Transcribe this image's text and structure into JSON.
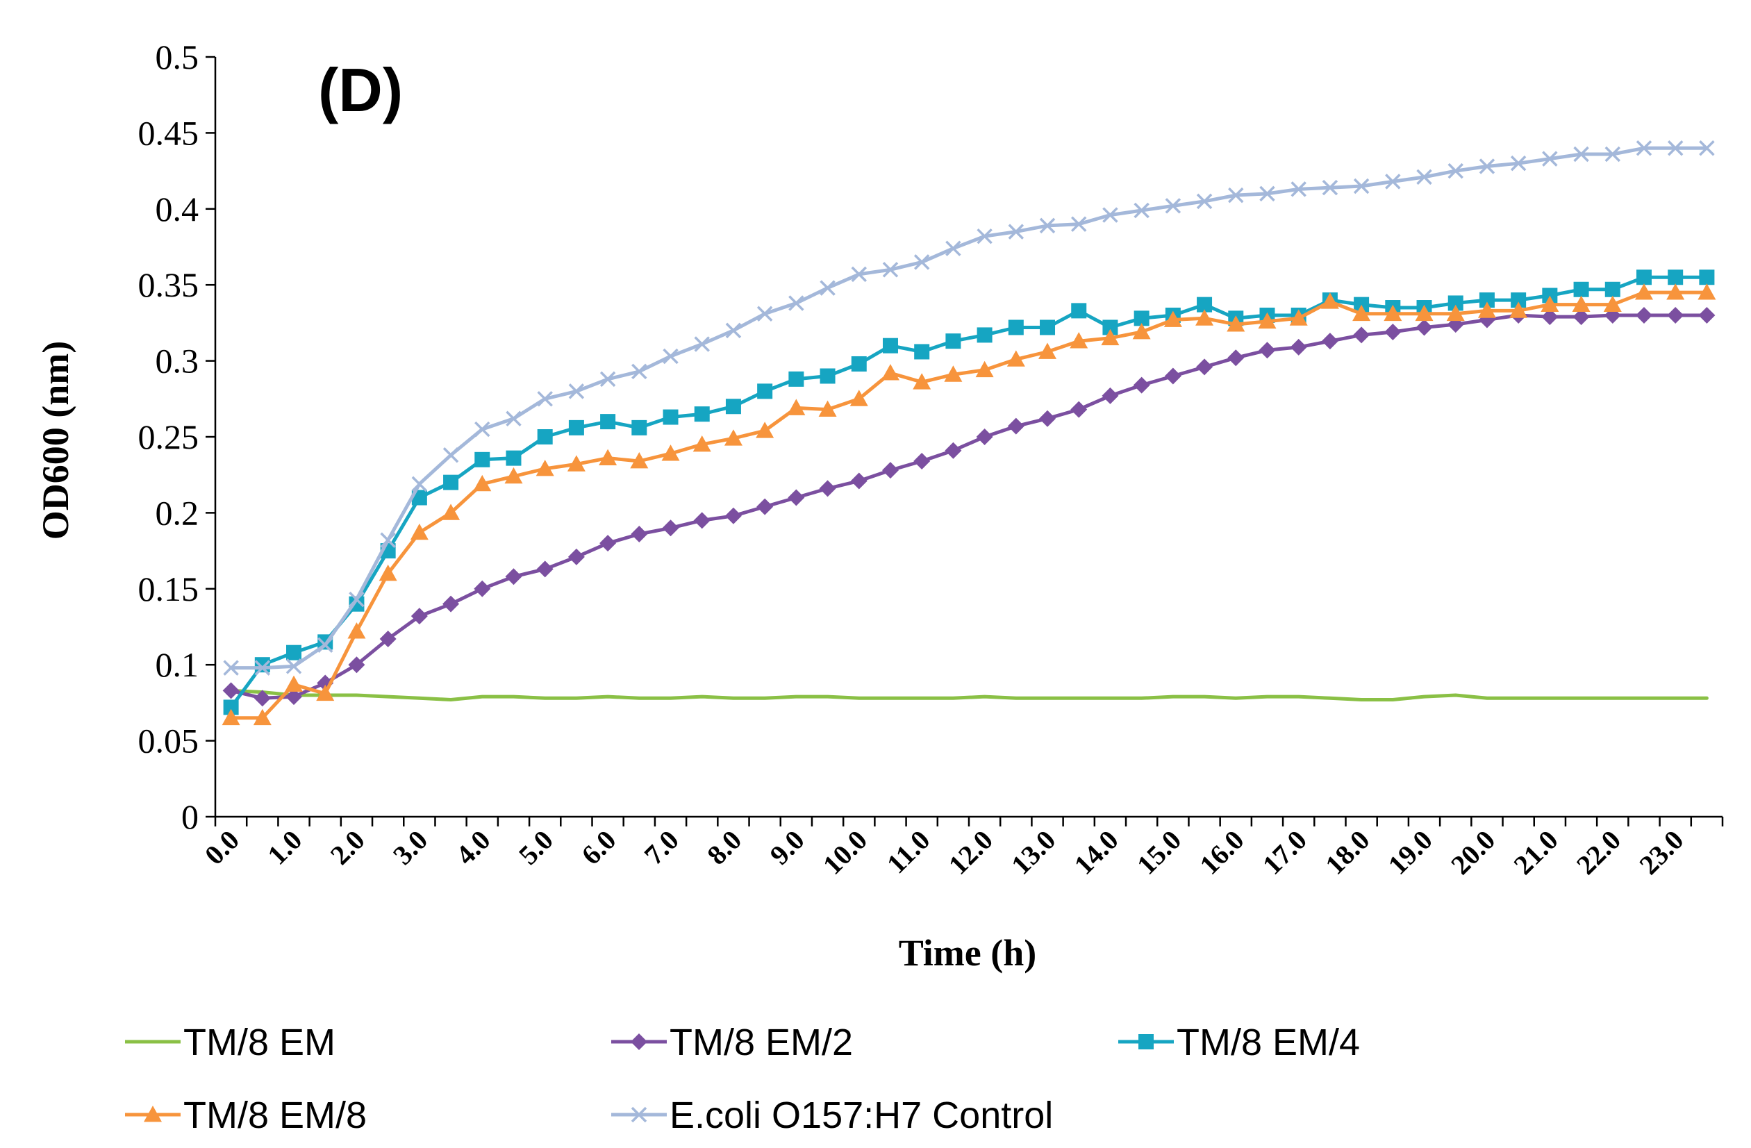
{
  "chart_data": {
    "type": "line",
    "panel_label": "(D)",
    "xlabel": "Time (h)",
    "ylabel": "OD600 (nm)",
    "ylim": [
      0,
      0.5
    ],
    "y_ticks": [
      "0",
      "0.05",
      "0.1",
      "0.15",
      "0.2",
      "0.25",
      "0.3",
      "0.35",
      "0.4",
      "0.45",
      "0.5"
    ],
    "x_tick_labels": [
      "0.0",
      "1.0",
      "2.0",
      "3.0",
      "4.0",
      "5.0",
      "6.0",
      "7.0",
      "8.0",
      "9.0",
      "10.0",
      "11.0",
      "12.0",
      "13.0",
      "14.0",
      "15.0",
      "16.0",
      "17.0",
      "18.0",
      "19.0",
      "20.0",
      "21.0",
      "22.0",
      "23.0"
    ],
    "x_step_hours": 0.5,
    "series": [
      {
        "name": "TM/8 EM",
        "color": "#8AC045",
        "marker": "none",
        "values": [
          0.083,
          0.082,
          0.08,
          0.08,
          0.08,
          0.079,
          0.078,
          0.077,
          0.079,
          0.079,
          0.078,
          0.078,
          0.079,
          0.078,
          0.078,
          0.079,
          0.078,
          0.078,
          0.079,
          0.079,
          0.078,
          0.078,
          0.078,
          0.078,
          0.079,
          0.078,
          0.078,
          0.078,
          0.078,
          0.078,
          0.079,
          0.079,
          0.078,
          0.079,
          0.079,
          0.078,
          0.077,
          0.077,
          0.079,
          0.08,
          0.078,
          0.078,
          0.078,
          0.078,
          0.078,
          0.078,
          0.078,
          0.078
        ]
      },
      {
        "name": "TM/8 EM/2",
        "color": "#7B4FA0",
        "marker": "diamond",
        "values": [
          0.083,
          0.078,
          0.079,
          0.088,
          0.1,
          0.117,
          0.132,
          0.14,
          0.15,
          0.158,
          0.163,
          0.171,
          0.18,
          0.186,
          0.19,
          0.195,
          0.198,
          0.204,
          0.21,
          0.216,
          0.221,
          0.228,
          0.234,
          0.241,
          0.25,
          0.257,
          0.262,
          0.268,
          0.277,
          0.284,
          0.29,
          0.296,
          0.302,
          0.307,
          0.309,
          0.313,
          0.317,
          0.319,
          0.322,
          0.324,
          0.327,
          0.33,
          0.329,
          0.329,
          0.33,
          0.33,
          0.33,
          0.33
        ]
      },
      {
        "name": "TM/8 EM/4",
        "color": "#16A5C2",
        "marker": "square",
        "values": [
          0.072,
          0.1,
          0.108,
          0.115,
          0.14,
          0.175,
          0.21,
          0.22,
          0.235,
          0.236,
          0.25,
          0.256,
          0.26,
          0.256,
          0.263,
          0.265,
          0.27,
          0.28,
          0.288,
          0.29,
          0.298,
          0.31,
          0.306,
          0.313,
          0.317,
          0.322,
          0.322,
          0.333,
          0.322,
          0.328,
          0.33,
          0.337,
          0.328,
          0.33,
          0.33,
          0.34,
          0.337,
          0.335,
          0.335,
          0.338,
          0.34,
          0.34,
          0.343,
          0.347,
          0.347,
          0.355,
          0.355,
          0.355
        ]
      },
      {
        "name": "TM/8 EM/8",
        "color": "#F7943C",
        "marker": "triangle",
        "values": [
          0.065,
          0.065,
          0.087,
          0.081,
          0.122,
          0.16,
          0.187,
          0.2,
          0.219,
          0.224,
          0.229,
          0.232,
          0.236,
          0.234,
          0.239,
          0.245,
          0.249,
          0.254,
          0.269,
          0.268,
          0.275,
          0.292,
          0.286,
          0.291,
          0.294,
          0.301,
          0.306,
          0.313,
          0.315,
          0.319,
          0.327,
          0.328,
          0.324,
          0.326,
          0.328,
          0.339,
          0.331,
          0.331,
          0.331,
          0.331,
          0.333,
          0.333,
          0.337,
          0.337,
          0.337,
          0.345,
          0.345,
          0.345
        ]
      },
      {
        "name": "E.coli O157:H7 Control",
        "color": "#A4B8DA",
        "marker": "x",
        "values": [
          0.098,
          0.098,
          0.099,
          0.113,
          0.143,
          0.182,
          0.219,
          0.238,
          0.255,
          0.262,
          0.275,
          0.28,
          0.288,
          0.293,
          0.303,
          0.311,
          0.32,
          0.331,
          0.338,
          0.348,
          0.357,
          0.36,
          0.365,
          0.374,
          0.382,
          0.385,
          0.389,
          0.39,
          0.396,
          0.399,
          0.402,
          0.405,
          0.409,
          0.41,
          0.413,
          0.414,
          0.415,
          0.418,
          0.421,
          0.425,
          0.428,
          0.43,
          0.433,
          0.436,
          0.436,
          0.44,
          0.44,
          0.44
        ]
      }
    ],
    "legend_position": "bottom"
  }
}
